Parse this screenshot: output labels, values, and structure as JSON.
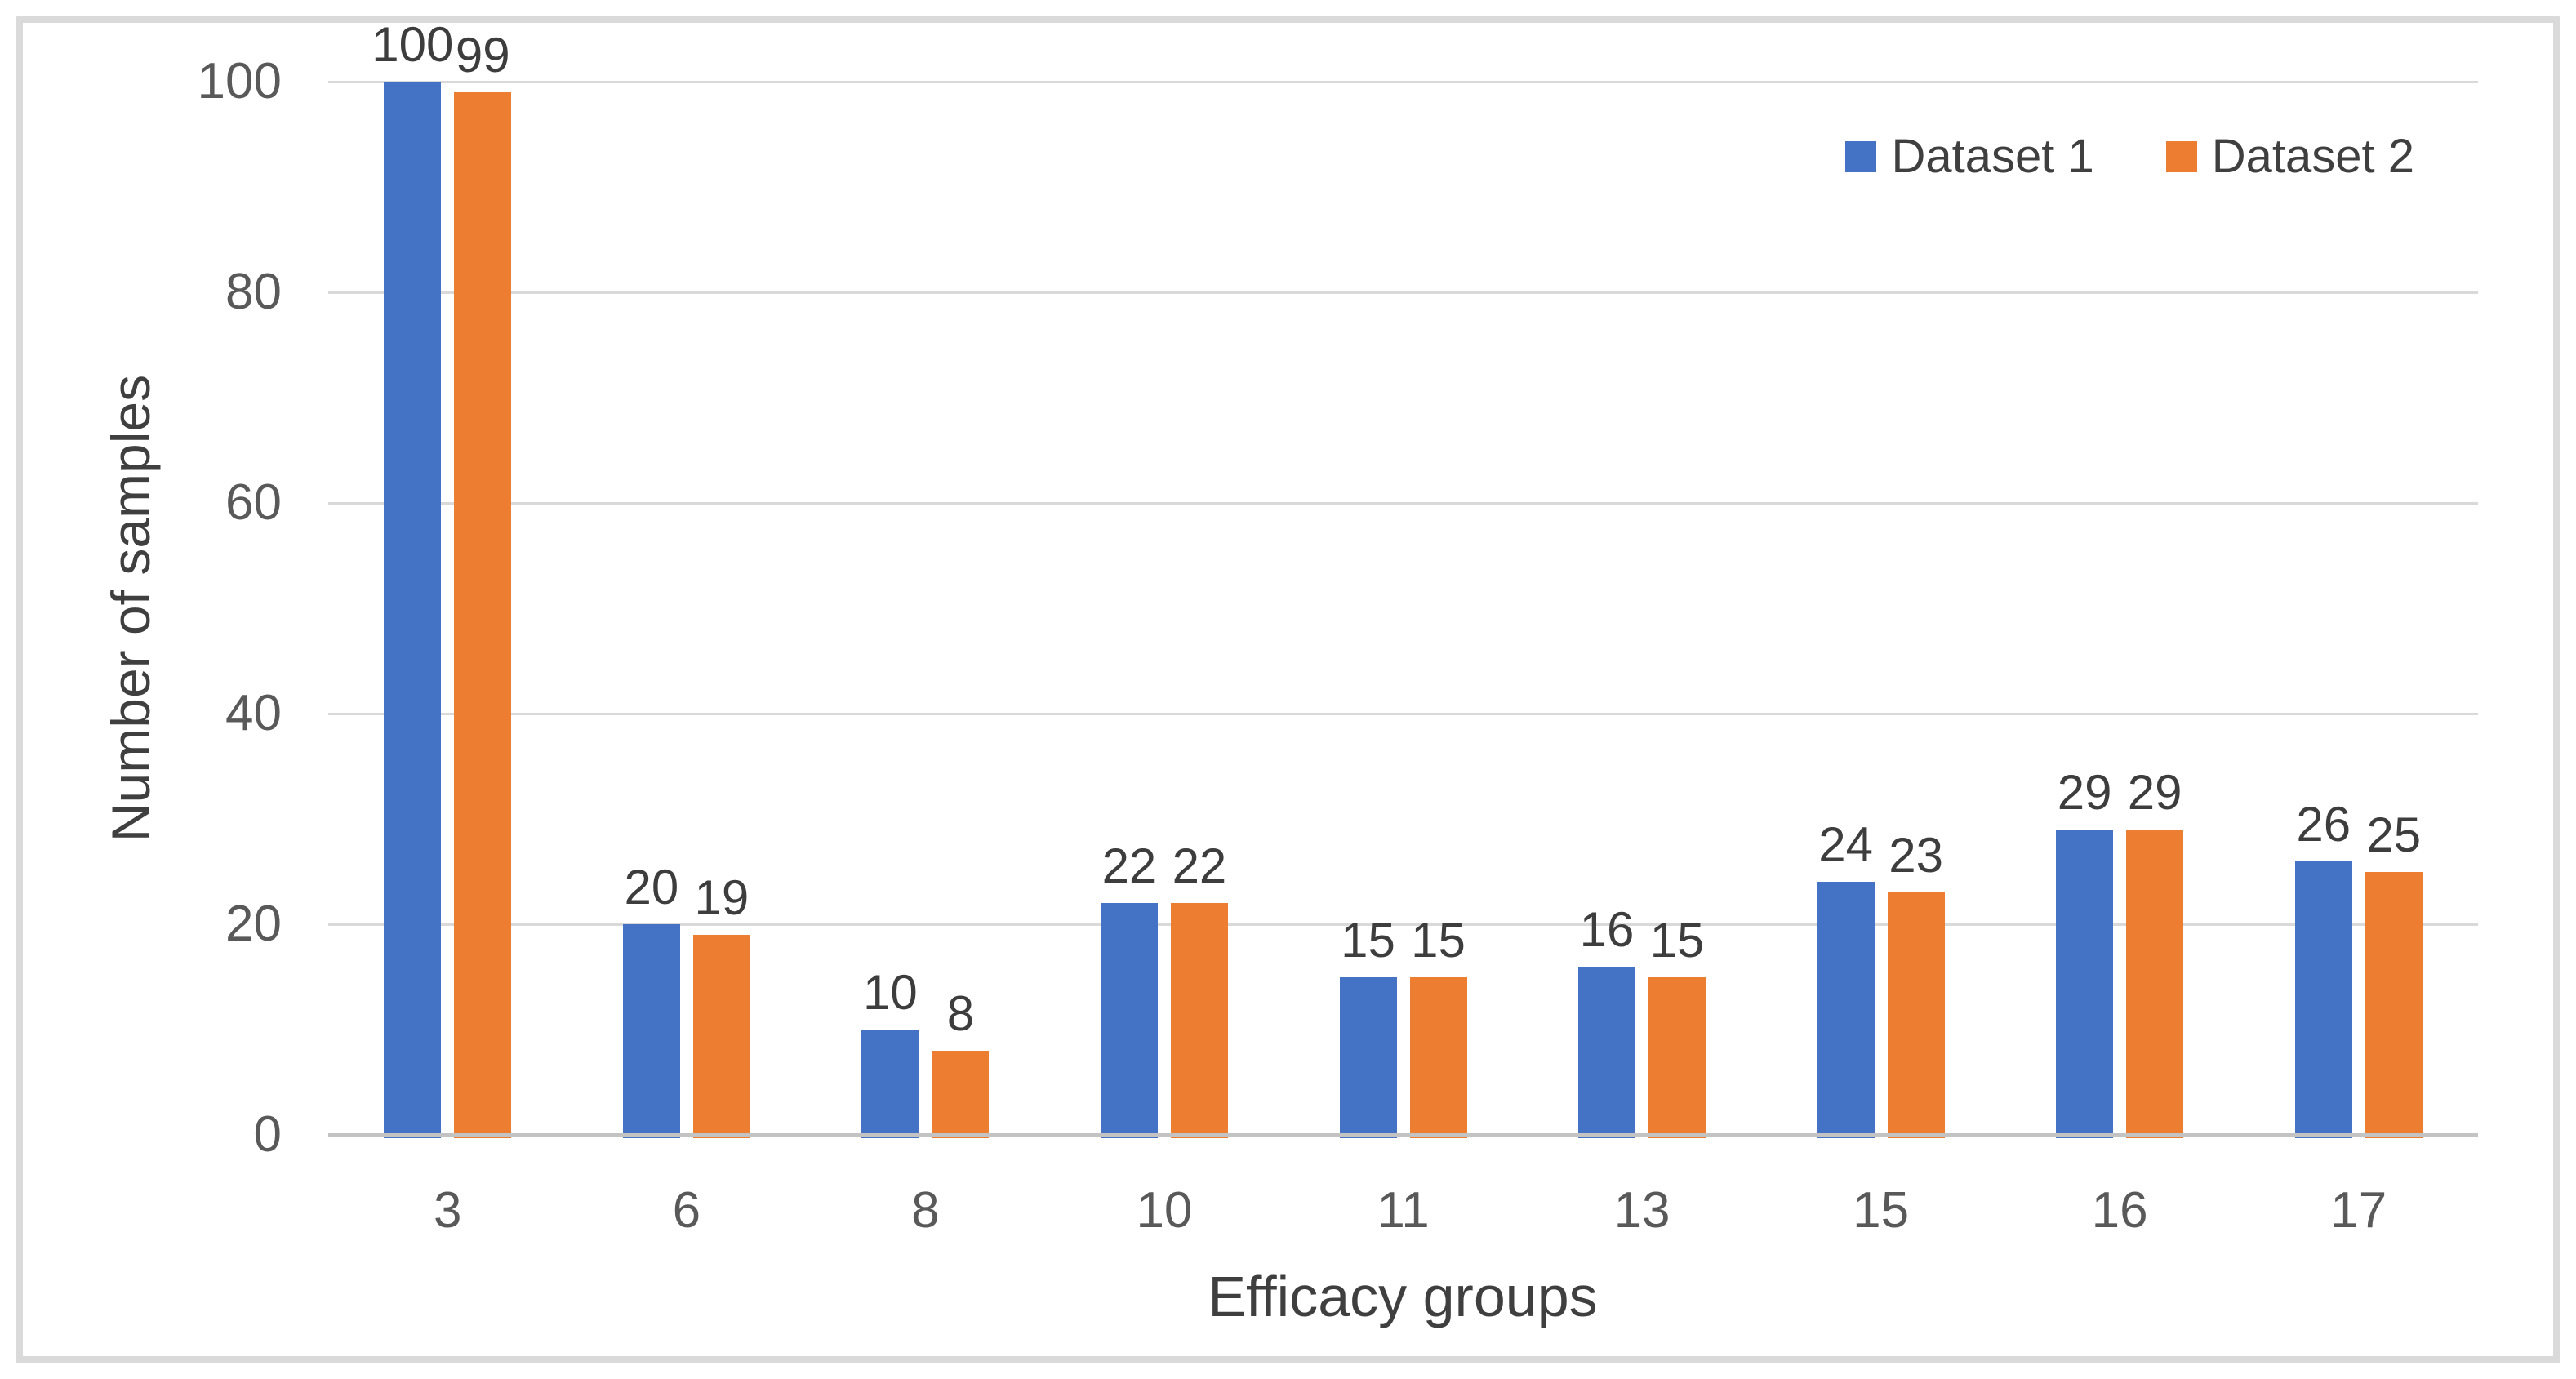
{
  "chart_data": {
    "type": "bar",
    "title": "",
    "xlabel": "Efficacy groups",
    "ylabel": "Number of samples",
    "categories": [
      "3",
      "6",
      "8",
      "10",
      "11",
      "13",
      "15",
      "16",
      "17"
    ],
    "series": [
      {
        "name": "Dataset 1",
        "color": "#4472C4",
        "values": [
          100,
          20,
          10,
          22,
          15,
          16,
          24,
          29,
          26
        ]
      },
      {
        "name": "Dataset 2",
        "color": "#ED7D31",
        "values": [
          99,
          19,
          8,
          22,
          15,
          15,
          23,
          29,
          25
        ]
      }
    ],
    "ylim": [
      0,
      100
    ],
    "yticks": [
      0,
      20,
      40,
      60,
      80,
      100
    ],
    "grid": true,
    "gridline_color": "#D9D9D9",
    "axis_line_color": "#C3C3C3",
    "data_labels": true,
    "legend_position": "top-right"
  }
}
